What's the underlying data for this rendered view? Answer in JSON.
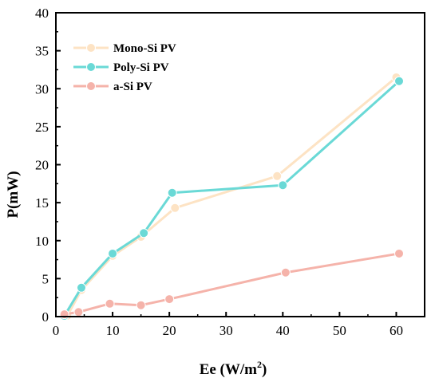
{
  "chart_data": {
    "type": "line",
    "xlabel": "Ee (W/m",
    "xlabel_sup": "2",
    "xlabel_end": ")",
    "ylabel": "P(mW)",
    "xlim": [
      0,
      65
    ],
    "ylim": [
      0,
      40
    ],
    "xticks": [
      0,
      10,
      20,
      30,
      40,
      50,
      60
    ],
    "yticks": [
      0,
      5,
      10,
      15,
      20,
      25,
      30,
      35,
      40
    ],
    "grid": false,
    "legend_position": "top-left",
    "series": [
      {
        "name": "Mono-Si PV",
        "color": "#fde3c4",
        "points": [
          [
            2,
            0.1
          ],
          [
            4.5,
            3.5
          ],
          [
            10,
            8.0
          ],
          [
            15,
            10.5
          ],
          [
            21,
            14.3
          ],
          [
            39,
            18.5
          ],
          [
            60,
            31.5
          ]
        ]
      },
      {
        "name": "Poly-Si PV",
        "color": "#6ad9d6",
        "points": [
          [
            1.5,
            0.1
          ],
          [
            4.5,
            3.8
          ],
          [
            10,
            8.3
          ],
          [
            15.5,
            11.0
          ],
          [
            20.5,
            16.3
          ],
          [
            40,
            17.3
          ],
          [
            60.5,
            31.0
          ]
        ]
      },
      {
        "name": "a-Si PV",
        "color": "#f5b3aa",
        "points": [
          [
            1.5,
            0.3
          ],
          [
            4,
            0.6
          ],
          [
            9.5,
            1.7
          ],
          [
            15,
            1.5
          ],
          [
            20,
            2.3
          ],
          [
            40.5,
            5.8
          ],
          [
            60.5,
            8.3
          ]
        ]
      }
    ]
  }
}
